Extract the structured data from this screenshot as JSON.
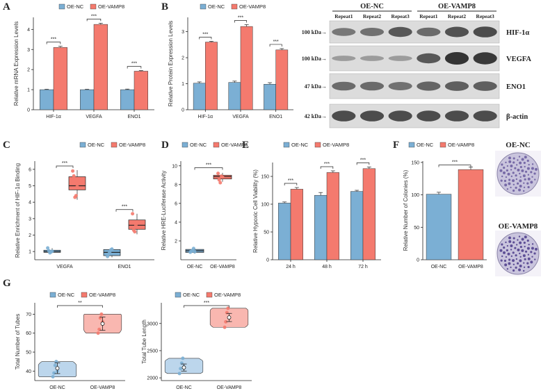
{
  "colors": {
    "nc": "#7bafd4",
    "vamp": "#f47a6e",
    "nc_light": "#bcd6ec",
    "vamp_light": "#f9b7b0",
    "blot_bg": "#dcdcdc",
    "band": "#2a2a2a"
  },
  "legend": {
    "nc": "OE-NC",
    "vamp": "OE-VAMP8"
  },
  "panel_letters": [
    "A",
    "B",
    "C",
    "D",
    "E",
    "F",
    "G"
  ],
  "chart_data": [
    {
      "id": "A",
      "type": "bar",
      "title": "",
      "ylabel": "Relative mRNA Expression Levels",
      "xlabel": "",
      "categories": [
        "HIF-1α",
        "VEGFA",
        "ENO1"
      ],
      "series": [
        {
          "name": "OE-NC",
          "values": [
            1.0,
            1.0,
            1.0
          ],
          "err": [
            0.02,
            0.02,
            0.03
          ]
        },
        {
          "name": "OE-VAMP8",
          "values": [
            3.1,
            4.25,
            1.92
          ],
          "err": [
            0.06,
            0.06,
            0.03
          ]
        }
      ],
      "ylim": [
        0,
        4.6
      ],
      "yticks": [
        0,
        1,
        2,
        3,
        4
      ],
      "sig": [
        "***",
        "***",
        "***"
      ]
    },
    {
      "id": "B",
      "type": "bar",
      "title": "",
      "ylabel": "Relative Protein Expression Levels",
      "xlabel": "",
      "categories": [
        "HIF-1α",
        "VEGFA",
        "ENO1"
      ],
      "series": [
        {
          "name": "OE-NC",
          "values": [
            1.02,
            1.05,
            0.98
          ],
          "err": [
            0.05,
            0.05,
            0.06
          ]
        },
        {
          "name": "OE-VAMP8",
          "values": [
            2.6,
            3.2,
            2.3
          ],
          "err": [
            0.03,
            0.07,
            0.05
          ]
        }
      ],
      "ylim": [
        0,
        3.55
      ],
      "yticks": [
        0,
        1,
        2,
        3
      ],
      "sig": [
        "***",
        "***",
        "***"
      ]
    },
    {
      "id": "C",
      "type": "box",
      "title": "",
      "ylabel": "Relative Enrichment of HIF-1α Binding",
      "xlabel": "",
      "categories": [
        "VEGFA",
        "ENO1"
      ],
      "series": [
        {
          "name": "OE-NC",
          "boxes": [
            {
              "min": 0.9,
              "q1": 0.95,
              "median": 1.0,
              "q3": 1.08,
              "max": 1.2
            },
            {
              "min": 0.65,
              "q1": 0.75,
              "median": 0.95,
              "q3": 1.12,
              "max": 1.2
            }
          ],
          "points": [
            [
              1.22,
              1.05,
              0.92,
              0.98,
              1.02
            ],
            [
              0.7,
              0.85,
              0.95,
              1.1,
              1.15
            ]
          ]
        },
        {
          "name": "OE-VAMP8",
          "boxes": [
            {
              "min": 4.15,
              "q1": 4.75,
              "median": 5.0,
              "q3": 5.55,
              "max": 5.95
            },
            {
              "min": 2.05,
              "q1": 2.35,
              "median": 2.6,
              "q3": 2.92,
              "max": 3.3
            }
          ],
          "points": [
            [
              5.9,
              5.6,
              4.3,
              4.4,
              4.95
            ],
            [
              3.3,
              2.3,
              2.2,
              2.6,
              2.8
            ]
          ]
        }
      ],
      "ylim": [
        0.5,
        6.5
      ],
      "yticks": [
        1,
        2,
        3,
        4,
        5,
        6
      ],
      "sig": [
        "***",
        "***"
      ]
    },
    {
      "id": "D",
      "type": "box",
      "title": "",
      "ylabel": "Relative HRE-Luciferase Activity",
      "xlabel": "",
      "categories": [
        "OE-NC",
        "OE-VAMP8"
      ],
      "boxes": [
        {
          "min": 0.65,
          "q1": 0.78,
          "median": 0.95,
          "q3": 1.1,
          "max": 1.25
        },
        {
          "min": 8.3,
          "q1": 8.6,
          "median": 8.85,
          "q3": 9.0,
          "max": 9.25
        }
      ],
      "points": [
        [
          0.8,
          0.9,
          1.0,
          1.2,
          0.85
        ],
        [
          9.2,
          8.5,
          8.2,
          8.9,
          8.8
        ]
      ],
      "ylim": [
        0,
        10.5
      ],
      "yticks": [
        2,
        4,
        6,
        8,
        10
      ],
      "sig": [
        "***"
      ]
    },
    {
      "id": "E",
      "type": "bar",
      "title": "",
      "ylabel": "Relative Hypoxic Cell Viability (%)",
      "xlabel": "",
      "categories": [
        "24 h",
        "48 h",
        "72 h"
      ],
      "series": [
        {
          "name": "OE-NC",
          "values": [
            102,
            116,
            123
          ],
          "err": [
            2,
            5,
            2
          ]
        },
        {
          "name": "OE-VAMP8",
          "values": [
            127,
            157,
            164
          ],
          "err": [
            3,
            3,
            3
          ]
        }
      ],
      "ylim": [
        0,
        175
      ],
      "yticks": [
        0,
        50,
        100,
        150
      ],
      "sig": [
        "***",
        "***",
        "***"
      ]
    },
    {
      "id": "F",
      "type": "bar",
      "title": "",
      "ylabel": "Relative Number of Colonies  (%)",
      "xlabel": "",
      "categories": [
        "OE-NC",
        "OE-VAMP8"
      ],
      "values": [
        101,
        139
      ],
      "err": [
        3,
        4
      ],
      "ylim": [
        0,
        152
      ],
      "yticks": [
        0,
        50,
        100,
        150
      ],
      "sig": [
        "***"
      ],
      "dish_labels": [
        "OE-NC",
        "OE-VAMP8"
      ]
    },
    {
      "id": "G1",
      "type": "violin",
      "title": "",
      "ylabel": "Total Number of Tubes",
      "xlabel": "",
      "categories": [
        "OE-NC",
        "OE-VAMP8"
      ],
      "means": [
        41.5,
        65
      ],
      "sd": [
        2.8,
        3.5
      ],
      "points": [
        [
          37,
          39,
          43,
          45,
          40
        ],
        [
          60,
          62,
          68,
          70,
          66
        ]
      ],
      "ylim": [
        35,
        76
      ],
      "yticks": [
        40,
        50,
        60,
        70
      ],
      "sig": [
        "**"
      ]
    },
    {
      "id": "G2",
      "type": "violin",
      "title": "",
      "ylabel": "Total Tube Length",
      "xlabel": "",
      "categories": [
        "OE-NC",
        "OE-VAMP8"
      ],
      "means": [
        2190,
        3110
      ],
      "sd": [
        65,
        75
      ],
      "points": [
        [
          2080,
          2170,
          2270,
          2360,
          2200
        ],
        [
          2930,
          3030,
          3200,
          3280,
          3100
        ]
      ],
      "ylim": [
        1950,
        3380
      ],
      "yticks": [
        2000,
        2500,
        3000
      ],
      "sig": [
        "***"
      ]
    }
  ],
  "western_blot": {
    "groups": [
      "OE-NC",
      "OE-VAMP8"
    ],
    "repeats": [
      "Repeat1",
      "Repeat2",
      "Repeat3",
      "Repeat1",
      "Repeat2",
      "Repeat3"
    ],
    "rows": [
      {
        "kda": "100 kDa→",
        "protein": "HIF-1α",
        "intensity": [
          0.45,
          0.5,
          0.7,
          0.55,
          0.75,
          0.8
        ]
      },
      {
        "kda": "100 kDa→",
        "protein": "VEGFA",
        "intensity": [
          0.15,
          0.15,
          0.15,
          0.7,
          1.0,
          0.95
        ]
      },
      {
        "kda": "47 kDa→",
        "protein": "ENO1",
        "intensity": [
          0.55,
          0.55,
          0.5,
          0.6,
          0.65,
          0.65
        ]
      },
      {
        "kda": "42 kDa→",
        "protein": "β-actin",
        "intensity": [
          0.8,
          0.8,
          0.8,
          0.8,
          0.8,
          0.8
        ]
      }
    ]
  }
}
